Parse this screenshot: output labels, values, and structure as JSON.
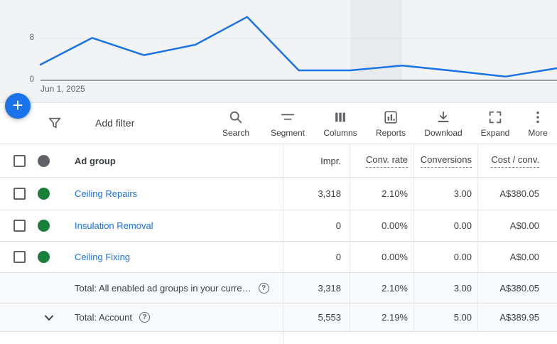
{
  "chart": {
    "y_axis_ticks": [
      "8",
      "0"
    ],
    "x_axis_label": "Jun 1, 2025"
  },
  "chart_data": {
    "type": "line",
    "title": "",
    "x_first_tick_label": "Jun 1, 2025",
    "x_description": "11 consecutive days starting Jun 1, 2025 (only first tick labeled)",
    "values": [
      3.0,
      8.1,
      4.8,
      6.8,
      12.1,
      1.9,
      1.9,
      2.8,
      1.8,
      0.7,
      2.3
    ],
    "y_ticks": [
      0,
      8
    ],
    "ylim": [
      0,
      13
    ],
    "grid": "single horizontal gridline at y=8, baseline axis at y=0",
    "legend": "none",
    "line_color": "#1a73e8",
    "highlight_band": {
      "from_point": 6,
      "to_point": 7,
      "color": "#e8eaed"
    }
  },
  "fab": {
    "plus_label": "+"
  },
  "toolbar": {
    "add_filter_label": "Add filter",
    "tools": [
      {
        "name": "search",
        "label": "Search"
      },
      {
        "name": "segment",
        "label": "Segment"
      },
      {
        "name": "columns",
        "label": "Columns"
      },
      {
        "name": "reports",
        "label": "Reports"
      },
      {
        "name": "download",
        "label": "Download"
      },
      {
        "name": "expand",
        "label": "Expand"
      },
      {
        "name": "more",
        "label": "More"
      }
    ]
  },
  "table": {
    "columns": [
      {
        "label": "Ad group",
        "dashed_underline": false
      },
      {
        "label": "Impr.",
        "dashed_underline": false
      },
      {
        "label": "Conv. rate",
        "dashed_underline": true
      },
      {
        "label": "Conversions",
        "dashed_underline": true
      },
      {
        "label": "Cost / conv.",
        "dashed_underline": true
      }
    ],
    "rows": [
      {
        "name": "Ceiling Repairs",
        "status": "enabled",
        "impr": "3,318",
        "conv_rate": "2.10%",
        "conversions": "3.00",
        "cost_per_conv": "A$380.05"
      },
      {
        "name": "Insulation Removal",
        "status": "enabled",
        "impr": "0",
        "conv_rate": "0.00%",
        "conversions": "0.00",
        "cost_per_conv": "A$0.00"
      },
      {
        "name": "Ceiling Fixing",
        "status": "enabled",
        "impr": "0",
        "conv_rate": "0.00%",
        "conversions": "0.00",
        "cost_per_conv": "A$0.00"
      }
    ],
    "totals": [
      {
        "label": "Total: All enabled ad groups in your curre…",
        "impr": "3,318",
        "conv_rate": "2.10%",
        "conversions": "3.00",
        "cost_per_conv": "A$380.05"
      },
      {
        "label": "Total: Account",
        "impr": "5,553",
        "conv_rate": "2.19%",
        "conversions": "5.00",
        "cost_per_conv": "A$389.95"
      }
    ]
  },
  "colors": {
    "accent_blue": "#1a73e8",
    "link_blue": "#1a73e8",
    "enabled_green": "#188038",
    "paused_gray_dot": "#5f6368",
    "chart_background": "#f1f3f4",
    "highlight_band": "#e8eaed",
    "axis_gray": "#9aa0a6",
    "totals_row_background": "#f8f9fa"
  }
}
